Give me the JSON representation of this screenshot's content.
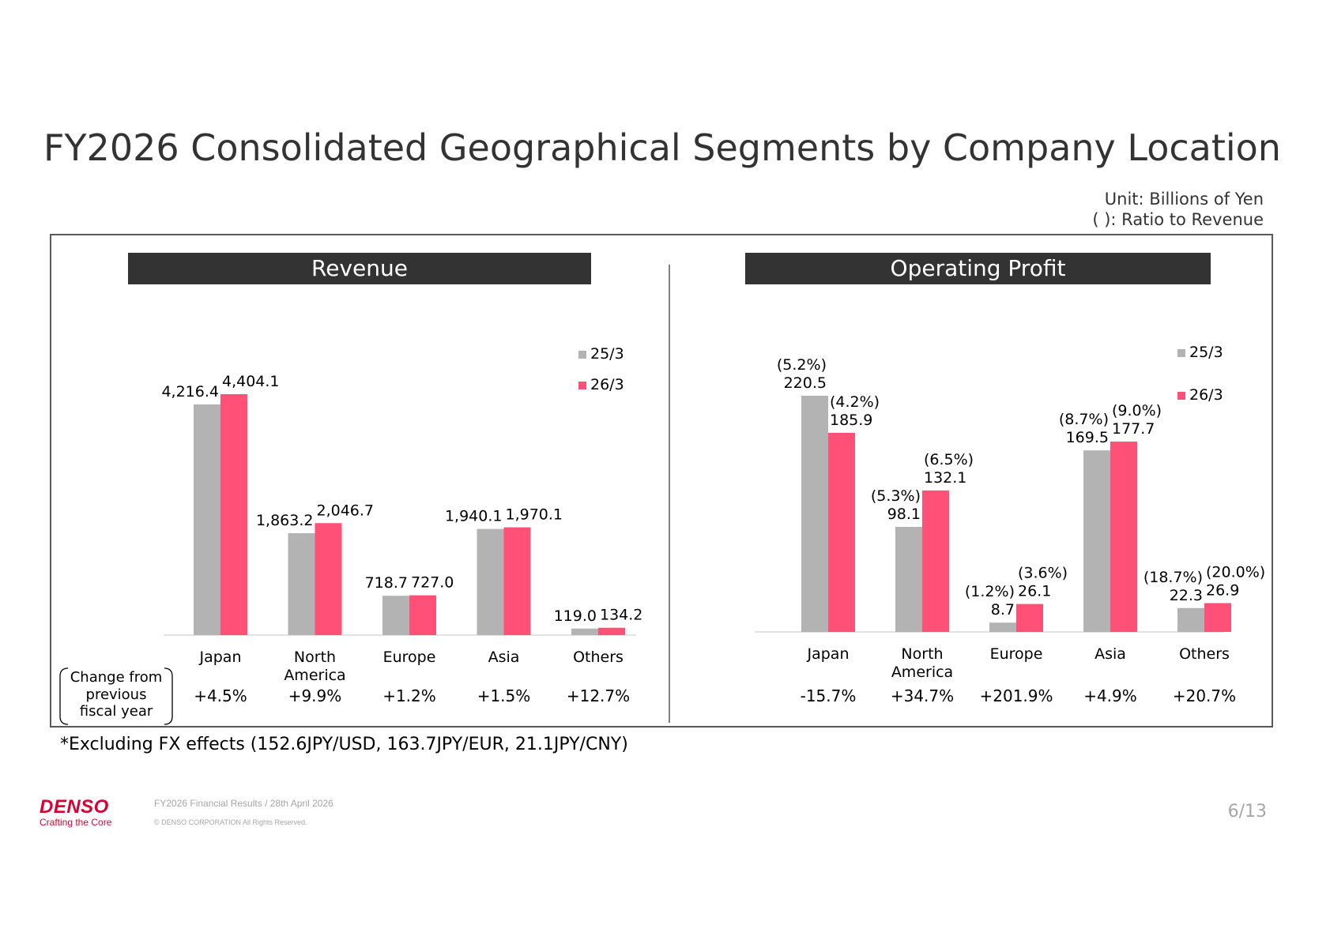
{
  "title": "FY2026 Consolidated Geographical Segments by Company Location",
  "unit_lines": [
    "Unit: Billions of Yen",
    "( ): Ratio to Revenue"
  ],
  "change_label_lines": [
    "Change from",
    "previous",
    "fiscal year"
  ],
  "footnote": "*Excluding FX effects (152.6JPY/USD, 163.7JPY/EUR, 21.1JPY/CNY)",
  "footer": {
    "brand": "DENSO",
    "tagline": "Crafting the Core",
    "line1": "FY2026 Financial Results / 28th April 2026",
    "line2": "© DENSO CORPORATION All Rights Reserved.",
    "page": "6/13"
  },
  "colors": {
    "prev": "#b3b3b3",
    "curr": "#ff5078",
    "header_bg": "#333333"
  },
  "chart_data": [
    {
      "type": "bar",
      "title": "Revenue",
      "categories": [
        [
          "Japan"
        ],
        [
          "North",
          "America"
        ],
        [
          "Europe"
        ],
        [
          "Asia"
        ],
        [
          "Others"
        ]
      ],
      "series": [
        {
          "name": "25/3",
          "values": [
            4216.4,
            1863.2,
            718.7,
            1940.1,
            119.0
          ],
          "labels": [
            "4,216.4",
            "1,863.2",
            "718.7",
            "1,940.1",
            "119.0"
          ]
        },
        {
          "name": "26/3",
          "values": [
            4404.1,
            2046.7,
            727.0,
            1970.1,
            134.2
          ],
          "labels": [
            "4,404.1",
            "2,046.7",
            "727.0",
            "1,970.1",
            "134.2"
          ]
        }
      ],
      "change": [
        "+4.5%",
        "+9.9%",
        "+1.2%",
        "+1.5%",
        "+12.7%"
      ],
      "legend_position": "top-right"
    },
    {
      "type": "bar",
      "title": "Operating Profit",
      "categories": [
        [
          "Japan"
        ],
        [
          "North",
          "America"
        ],
        [
          "Europe"
        ],
        [
          "Asia"
        ],
        [
          "Others"
        ]
      ],
      "series": [
        {
          "name": "25/3",
          "values": [
            220.5,
            98.1,
            8.7,
            169.5,
            22.3
          ],
          "labels": [
            "220.5",
            "98.1",
            "8.7",
            "169.5",
            "22.3"
          ],
          "ratios": [
            "(5.2%)",
            "(5.3%)",
            "(1.2%)",
            "(8.7%)",
            "(18.7%)"
          ]
        },
        {
          "name": "26/3",
          "values": [
            185.9,
            132.1,
            26.1,
            177.7,
            26.9
          ],
          "labels": [
            "185.9",
            "132.1",
            "26.1",
            "177.7",
            "26.9"
          ],
          "ratios": [
            "(4.2%)",
            "(6.5%)",
            "(3.6%)",
            "(9.0%)",
            "(20.0%)"
          ]
        }
      ],
      "change": [
        "-15.7%",
        "+34.7%",
        "+201.9%",
        "+4.9%",
        "+20.7%"
      ],
      "legend_position": "top-right"
    }
  ]
}
